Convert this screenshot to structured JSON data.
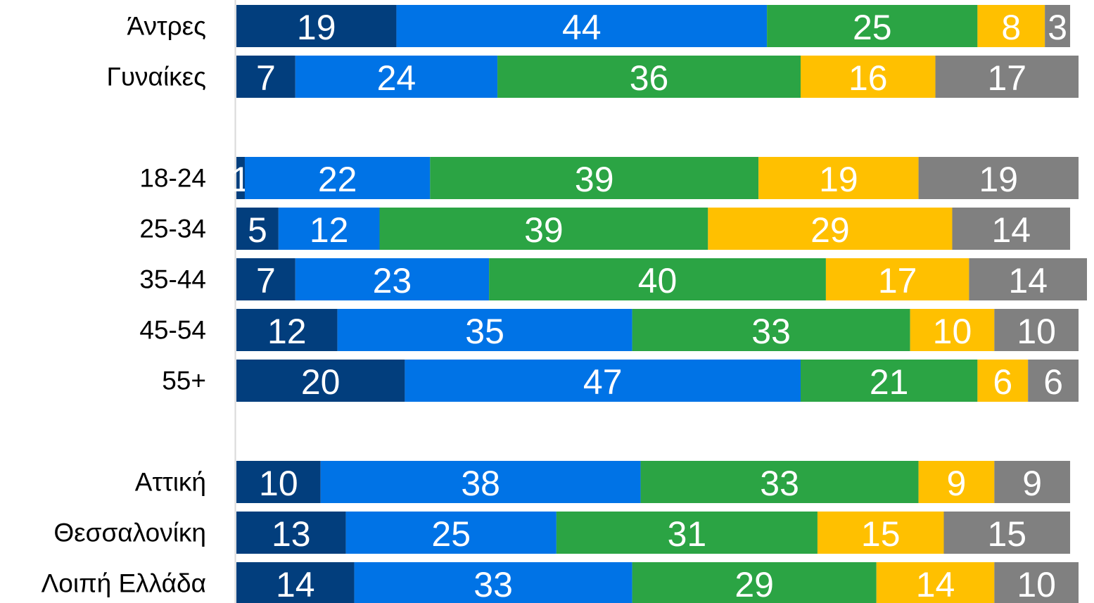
{
  "chart_data": {
    "type": "stacked_bar_horizontal",
    "categories": [
      "Άντρες",
      "Γυναίκες",
      null,
      "18-24",
      "25-34",
      "35-44",
      "45-54",
      "55+",
      null,
      "Αττική",
      "Θεσσαλονίκη",
      "Λοιπή Ελλάδα"
    ],
    "series": [
      {
        "color": "#023e7d",
        "values": [
          19,
          7,
          null,
          1,
          5,
          7,
          12,
          20,
          null,
          10,
          13,
          14
        ]
      },
      {
        "color": "#0073e6",
        "values": [
          44,
          24,
          null,
          22,
          12,
          23,
          35,
          47,
          null,
          38,
          25,
          33
        ]
      },
      {
        "color": "#2ba444",
        "values": [
          25,
          36,
          null,
          39,
          39,
          40,
          33,
          21,
          null,
          33,
          31,
          29
        ]
      },
      {
        "color": "#ffc000",
        "values": [
          8,
          16,
          null,
          19,
          29,
          17,
          10,
          6,
          null,
          9,
          15,
          14
        ]
      },
      {
        "color": "#808080",
        "values": [
          3,
          17,
          null,
          19,
          14,
          14,
          10,
          6,
          null,
          9,
          15,
          10
        ]
      }
    ],
    "xlim": [
      0,
      101
    ]
  }
}
